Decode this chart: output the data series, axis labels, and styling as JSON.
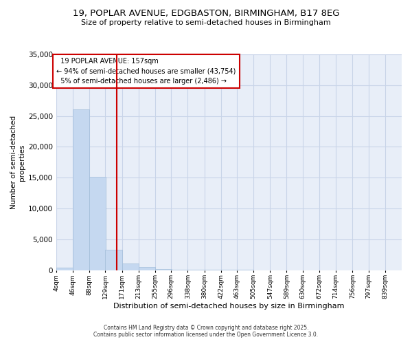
{
  "title": "19, POPLAR AVENUE, EDGBASTON, BIRMINGHAM, B17 8EG",
  "subtitle": "Size of property relative to semi-detached houses in Birmingham",
  "xlabel": "Distribution of semi-detached houses by size in Birmingham",
  "ylabel": "Number of semi-detached\nproperties",
  "property_size": 157,
  "property_label": "19 POPLAR AVENUE: 157sqm",
  "pct_smaller": 94,
  "count_smaller": 43754,
  "pct_larger": 5,
  "count_larger": 2486,
  "bin_labels": [
    "4sqm",
    "46sqm",
    "88sqm",
    "129sqm",
    "171sqm",
    "213sqm",
    "255sqm",
    "296sqm",
    "338sqm",
    "380sqm",
    "422sqm",
    "463sqm",
    "505sqm",
    "547sqm",
    "589sqm",
    "630sqm",
    "672sqm",
    "714sqm",
    "756sqm",
    "797sqm",
    "839sqm"
  ],
  "bin_edges": [
    4,
    46,
    88,
    129,
    171,
    213,
    255,
    296,
    338,
    380,
    422,
    463,
    505,
    547,
    589,
    630,
    672,
    714,
    756,
    797,
    839
  ],
  "bar_heights": [
    400,
    26100,
    15100,
    3300,
    1100,
    500,
    150,
    30,
    10,
    5,
    3,
    2,
    1,
    0,
    0,
    0,
    0,
    0,
    0,
    0
  ],
  "bar_color": "#c5d8f0",
  "bar_edge_color": "#a0bcd8",
  "grid_color": "#c8d4e8",
  "bg_color": "#e8eef8",
  "vline_color": "#cc0000",
  "vline_x": 157,
  "annotation_box_color": "#cc0000",
  "ylim": [
    0,
    35000
  ],
  "yticks": [
    0,
    5000,
    10000,
    15000,
    20000,
    25000,
    30000,
    35000
  ],
  "footer_line1": "Contains HM Land Registry data © Crown copyright and database right 2025.",
  "footer_line2": "Contains public sector information licensed under the Open Government Licence 3.0."
}
